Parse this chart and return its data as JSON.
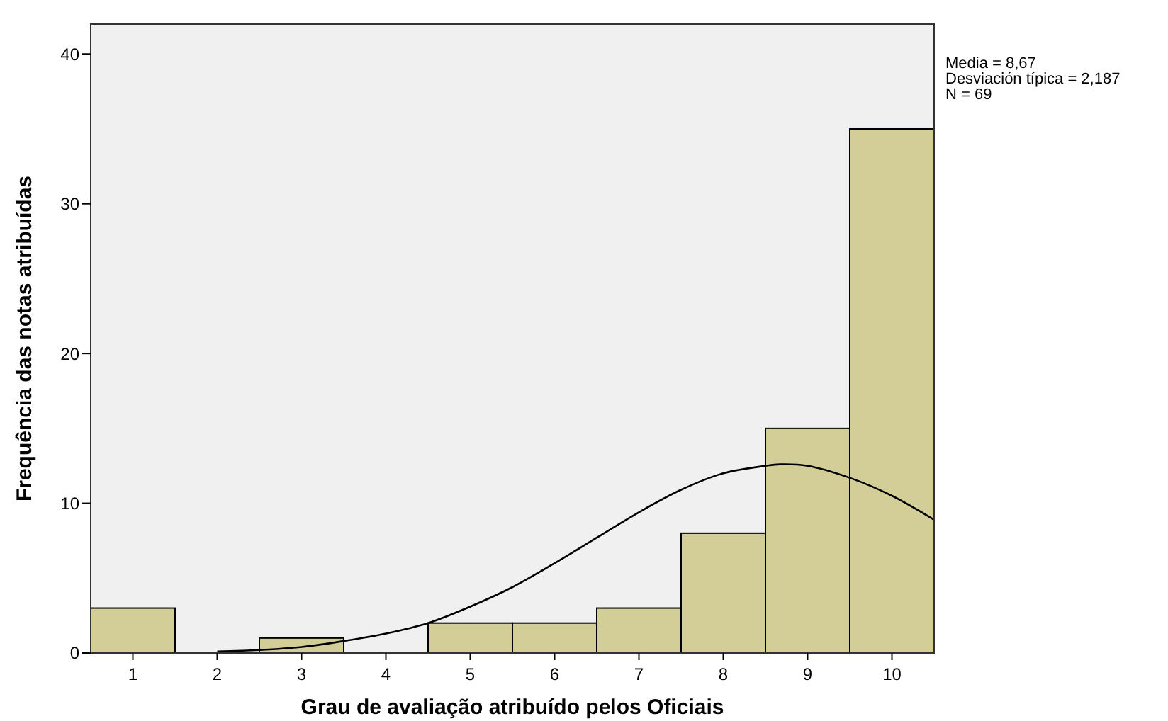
{
  "chart_data": {
    "type": "histogram",
    "xlabel": "Grau de avaliação atribuído pelos Oficiais",
    "ylabel": "Frequência das notas atribuídas",
    "annotations": [
      "Media = 8,67",
      "Desviación típica = 2,187",
      "N = 69"
    ],
    "xlim": [
      0.5,
      10.5
    ],
    "xticks": [
      1,
      2,
      3,
      4,
      5,
      6,
      7,
      8,
      9,
      10
    ],
    "ylim": [
      0,
      42
    ],
    "yticks": [
      0,
      10,
      20,
      30,
      40
    ],
    "grid": false,
    "series": [
      {
        "color": "#d3ce98",
        "bins": [
          0.5,
          1.5,
          2.5,
          3.5,
          4.5,
          5.5,
          6.5,
          7.5,
          8.5,
          9.5,
          10.5
        ],
        "values": [
          3,
          0,
          1,
          0,
          2,
          2,
          3,
          8,
          15,
          35
        ]
      },
      {
        "type": "line",
        "color": "#000000",
        "x": [
          2,
          2.5,
          3,
          3.5,
          4,
          4.5,
          5,
          5.5,
          6,
          6.5,
          7,
          7.5,
          8,
          8.5,
          8.67,
          9,
          9.5,
          10,
          10.5
        ],
        "values": [
          0.1,
          0.2,
          0.4,
          0.8,
          1.3,
          2,
          3.1,
          4.4,
          6,
          7.7,
          9.4,
          10.9,
          12,
          12.5,
          12.6,
          12.5,
          11.7,
          10.5,
          8.9
        ]
      }
    ]
  }
}
